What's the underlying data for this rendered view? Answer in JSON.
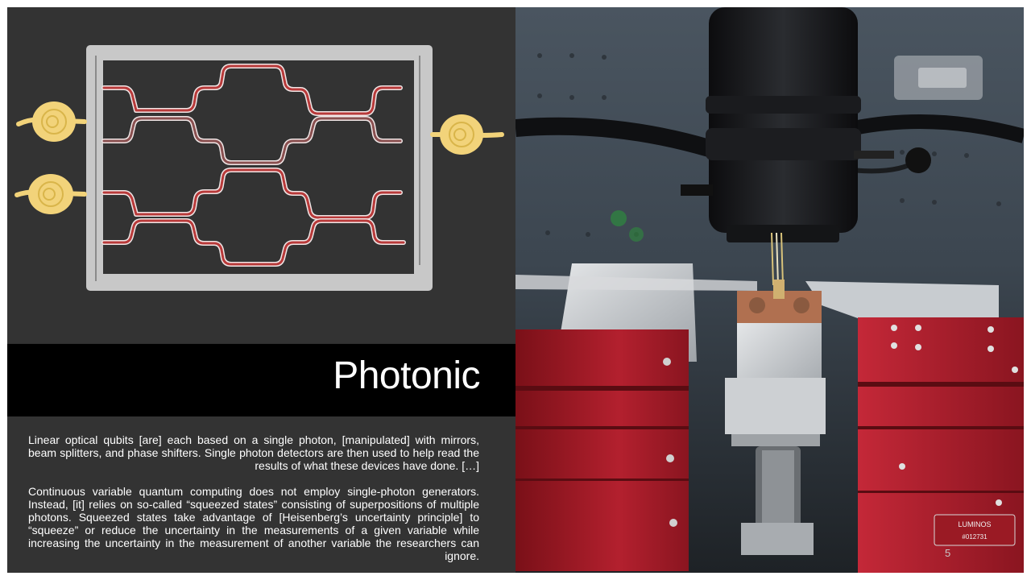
{
  "slide": {
    "title": "Photonic",
    "paragraphs": [
      "Linear optical qubits [are] each based on a single photon, [manipulated] with mirrors, beam splitters, and phase shifters. Single photon detectors are then used to help read the results of what these devices have done. […]",
      "Continuous variable quantum computing does not employ single-photon generators. Instead, [it] relies on so-called “squeezed states” consisting of superpositions of multiple photons. Squeezed states take advantage of [Heisenberg’s uncertainty principle] to “squeeze” or reduce the uncertainty in the measurements of a given variable while increasing the uncertainty in the measurement of another variable the researchers can ignore."
    ],
    "page_number": "5",
    "photo": {
      "label_text": "LUMINOS",
      "serial_text": "#012731"
    }
  },
  "colors": {
    "background": "#2f2f2f",
    "title_band": "#000000",
    "chip_frame": "#c8c8c8",
    "waveguide": "#b83a3a",
    "photon": "#f2d37a",
    "stage_red": "#b3202e"
  },
  "icons": [
    "photon-source-icon",
    "photon-detector-icon"
  ]
}
